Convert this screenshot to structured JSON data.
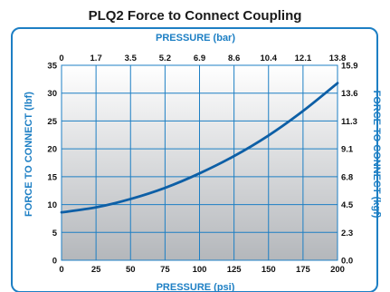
{
  "chart_data": {
    "type": "line",
    "title": "PLQ2 Force to Connect Coupling",
    "x": [
      0,
      25,
      50,
      75,
      100,
      125,
      150,
      175,
      200
    ],
    "series": [
      {
        "values": [
          8.6,
          9.5,
          11.0,
          13.0,
          15.6,
          18.7,
          22.4,
          26.8,
          31.8
        ]
      }
    ],
    "xlabel": "PRESSURE (psi)",
    "ylabel": "FORCE TO CONNECT (lbf)",
    "xlim": [
      0,
      200
    ],
    "ylim": [
      0,
      35
    ],
    "x_ticks": [
      "0",
      "25",
      "50",
      "75",
      "100",
      "125",
      "150",
      "175",
      "200"
    ],
    "y_ticks": [
      "0",
      "5",
      "10",
      "15",
      "20",
      "25",
      "30",
      "35"
    ],
    "top_axis": {
      "label": "PRESSURE (bar)",
      "ticks": [
        "0",
        "1.7",
        "3.5",
        "5.2",
        "6.9",
        "8.6",
        "10.4",
        "12.1",
        "13.8"
      ]
    },
    "right_axis": {
      "label": "FORCE TO CONNECT (kgf)",
      "ticks": [
        "0.0",
        "2.3",
        "4.5",
        "6.8",
        "9.1",
        "11.3",
        "13.6",
        "15.9"
      ]
    },
    "grid": true,
    "colors": {
      "frame": "#1d7fc4",
      "line": "#0d5fa6",
      "grid": "#1d7fc4",
      "gradient_top": "#ffffff",
      "gradient_bottom": "#b4b7bb"
    }
  }
}
